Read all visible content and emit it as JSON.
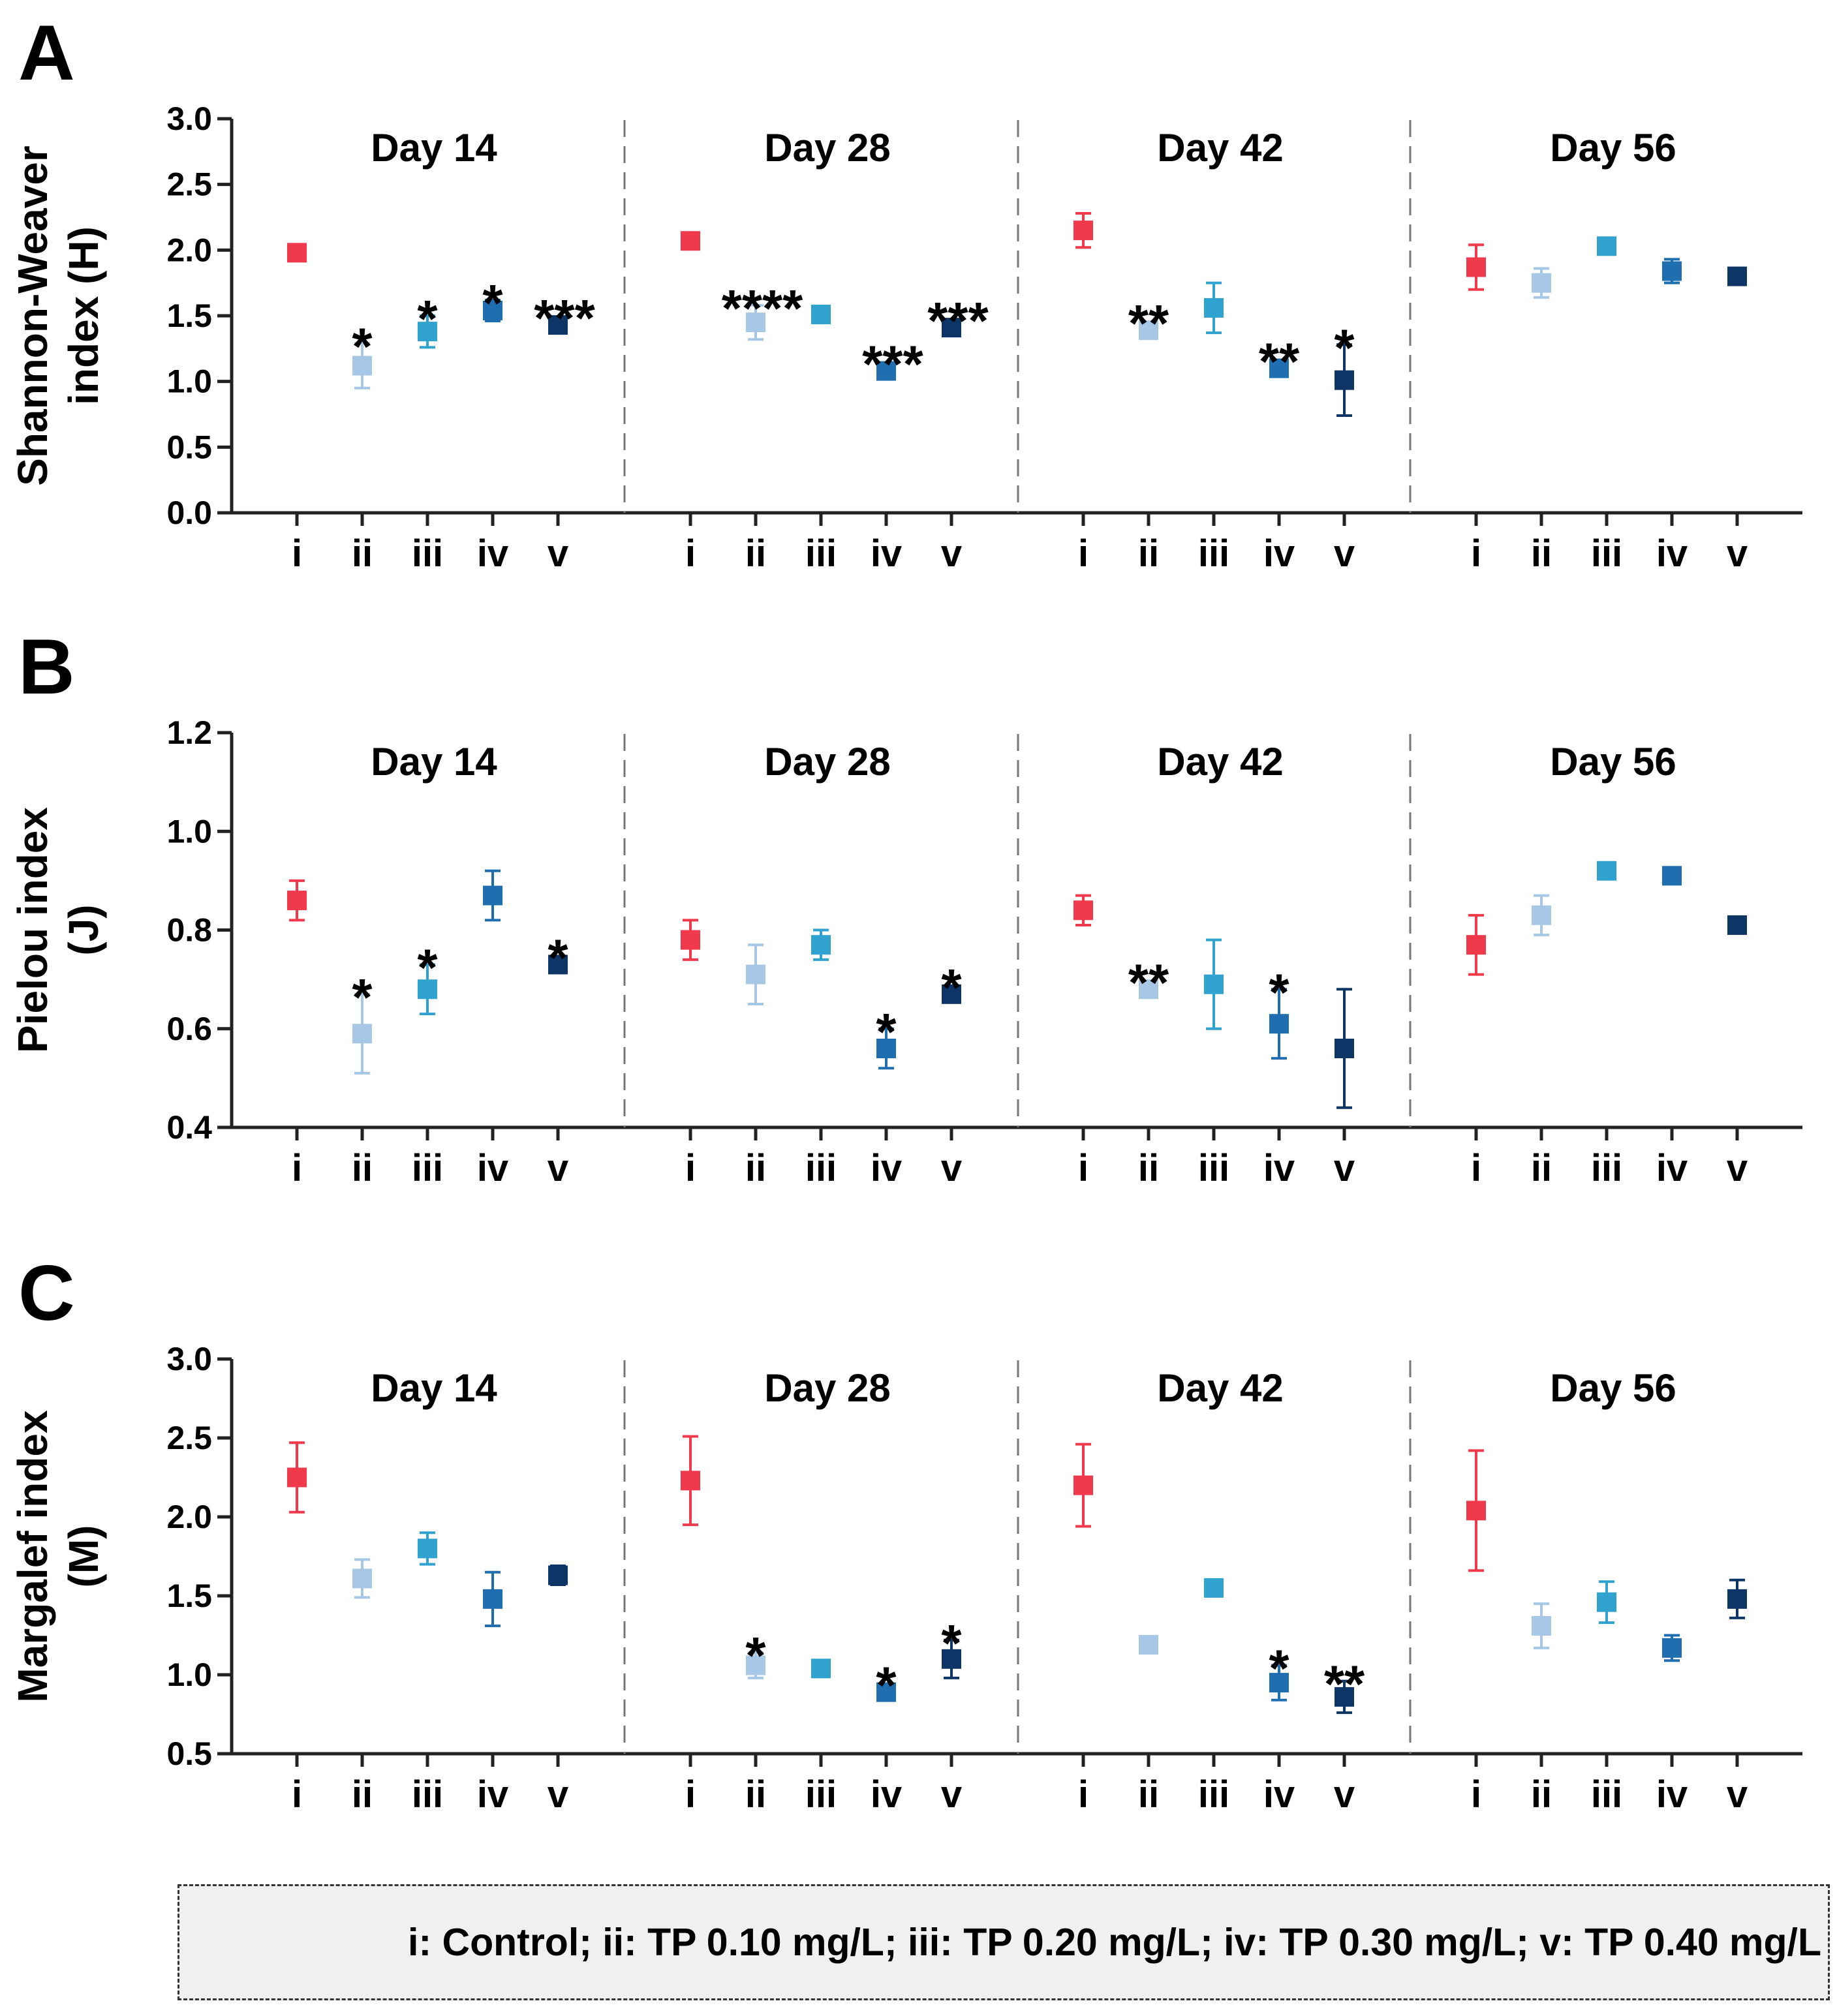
{
  "legend": "i: Control; ii: TP 0.10 mg/L; iii: TP 0.20 mg/L; iv: TP 0.30 mg/L; v: TP 0.40 mg/L",
  "colors": [
    "#f0394b",
    "#a6c8e6",
    "#2fa2d0",
    "#1e6eb0",
    "#0d3566"
  ],
  "chart_data": [
    {
      "type": "scatter",
      "panel": "A",
      "ylabel_lines": [
        "Shannon-Weaver",
        "index (H)"
      ],
      "ylim": [
        0,
        3.0
      ],
      "yticks": [
        "0.0",
        "0.5",
        "1.0",
        "1.5",
        "2.0",
        "2.5",
        "3.0"
      ],
      "groups": [
        "Day 14",
        "Day 28",
        "Day 42",
        "Day 56"
      ],
      "categories": [
        "i",
        "ii",
        "iii",
        "iv",
        "v"
      ],
      "series": [
        {
          "group": "Day 14",
          "values": [
            1.98,
            1.12,
            1.38,
            1.54,
            1.43
          ],
          "errors": [
            0.05,
            0.17,
            0.12,
            0.08,
            0.04
          ],
          "sig": [
            "",
            "*",
            "*",
            "*",
            "***"
          ]
        },
        {
          "group": "Day 28",
          "values": [
            2.07,
            1.45,
            1.51,
            1.08,
            1.41
          ],
          "errors": [
            0.04,
            0.13,
            0.04,
            0.06,
            0.04
          ],
          "sig": [
            "",
            "****",
            "",
            "***",
            "***"
          ]
        },
        {
          "group": "Day 42",
          "values": [
            2.15,
            1.39,
            1.56,
            1.1,
            1.01
          ],
          "errors": [
            0.13,
            0.04,
            0.19,
            0.06,
            0.27
          ],
          "sig": [
            "",
            "**",
            "",
            "**",
            "*"
          ]
        },
        {
          "group": "Day 56",
          "values": [
            1.87,
            1.75,
            2.03,
            1.84,
            1.8
          ],
          "errors": [
            0.17,
            0.11,
            0.04,
            0.09,
            0.04
          ],
          "sig": [
            "",
            "",
            "",
            "",
            ""
          ]
        }
      ]
    },
    {
      "type": "scatter",
      "panel": "B",
      "ylabel_lines": [
        "Pielou index",
        "(J)"
      ],
      "ylim": [
        0.4,
        1.2
      ],
      "yticks": [
        "0.4",
        "0.6",
        "0.8",
        "1.0",
        "1.2"
      ],
      "groups": [
        "Day 14",
        "Day 28",
        "Day 42",
        "Day 56"
      ],
      "categories": [
        "i",
        "ii",
        "iii",
        "iv",
        "v"
      ],
      "series": [
        {
          "group": "Day 14",
          "values": [
            0.86,
            0.59,
            0.68,
            0.87,
            0.73
          ],
          "errors": [
            0.04,
            0.08,
            0.05,
            0.05,
            0.01
          ],
          "sig": [
            "",
            "*",
            "*",
            "",
            "*"
          ]
        },
        {
          "group": "Day 28",
          "values": [
            0.78,
            0.71,
            0.77,
            0.56,
            0.67
          ],
          "errors": [
            0.04,
            0.06,
            0.03,
            0.04,
            0.01
          ],
          "sig": [
            "",
            "",
            "",
            "*",
            "*"
          ]
        },
        {
          "group": "Day 42",
          "values": [
            0.84,
            0.68,
            0.69,
            0.61,
            0.56
          ],
          "errors": [
            0.03,
            0.01,
            0.09,
            0.07,
            0.12
          ],
          "sig": [
            "",
            "**",
            "",
            "*",
            ""
          ]
        },
        {
          "group": "Day 56",
          "values": [
            0.77,
            0.83,
            0.92,
            0.91,
            0.81
          ],
          "errors": [
            0.06,
            0.04,
            0.01,
            0.01,
            0.01
          ],
          "sig": [
            "",
            "",
            "",
            "",
            ""
          ]
        }
      ]
    },
    {
      "type": "scatter",
      "panel": "C",
      "ylabel_lines": [
        "Margalef index",
        "(M)"
      ],
      "ylim": [
        0.5,
        3.0
      ],
      "yticks": [
        "0.5",
        "1.0",
        "1.5",
        "2.0",
        "2.5",
        "3.0"
      ],
      "groups": [
        "Day 14",
        "Day 28",
        "Day 42",
        "Day 56"
      ],
      "categories": [
        "i",
        "ii",
        "iii",
        "iv",
        "v"
      ],
      "series": [
        {
          "group": "Day 14",
          "values": [
            2.25,
            1.61,
            1.8,
            1.48,
            1.63
          ],
          "errors": [
            0.22,
            0.12,
            0.1,
            0.17,
            0.06
          ],
          "sig": [
            "",
            "",
            "",
            "",
            ""
          ]
        },
        {
          "group": "Day 28",
          "values": [
            2.23,
            1.06,
            1.04,
            0.89,
            1.1
          ],
          "errors": [
            0.28,
            0.08,
            0.02,
            0.03,
            0.12
          ],
          "sig": [
            "",
            "*",
            "",
            "*",
            "*"
          ]
        },
        {
          "group": "Day 42",
          "values": [
            2.2,
            1.19,
            1.55,
            0.95,
            0.86
          ],
          "errors": [
            0.26,
            0.02,
            0.02,
            0.11,
            0.1
          ],
          "sig": [
            "",
            "",
            "",
            "*",
            "**"
          ]
        },
        {
          "group": "Day 56",
          "values": [
            2.04,
            1.31,
            1.46,
            1.17,
            1.48
          ],
          "errors": [
            0.38,
            0.14,
            0.13,
            0.08,
            0.12
          ],
          "sig": [
            "",
            "",
            "",
            "",
            ""
          ]
        }
      ]
    }
  ]
}
